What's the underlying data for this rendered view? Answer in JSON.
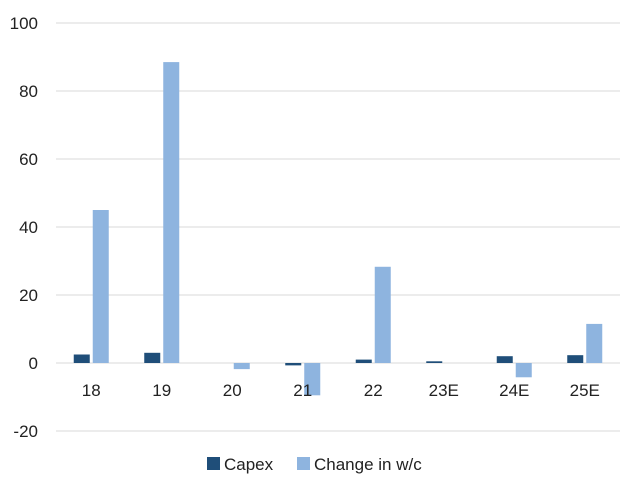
{
  "colors": {
    "capex": "#1f4e79",
    "change_wc": "#8eb4df",
    "grid": "#d9d9d9",
    "zero_line": "#d9d9d9"
  },
  "chart_data": {
    "type": "bar",
    "title": "",
    "xlabel": "",
    "ylabel": "",
    "categories": [
      "18",
      "19",
      "20",
      "21",
      "22",
      "23E",
      "24E",
      "25E"
    ],
    "series": [
      {
        "name": "Capex",
        "values": [
          2.5,
          3.0,
          0.0,
          -0.7,
          1.0,
          0.5,
          2.0,
          2.3
        ]
      },
      {
        "name": "Change in w/c",
        "values": [
          45.0,
          88.5,
          -1.8,
          -9.5,
          28.3,
          0.0,
          -4.2,
          11.5
        ]
      }
    ],
    "ylim": [
      -20,
      100
    ],
    "yticks": [
      "-20",
      "0",
      "20",
      "40",
      "60",
      "80",
      "100"
    ],
    "grid": true,
    "legend_position": "bottom"
  }
}
